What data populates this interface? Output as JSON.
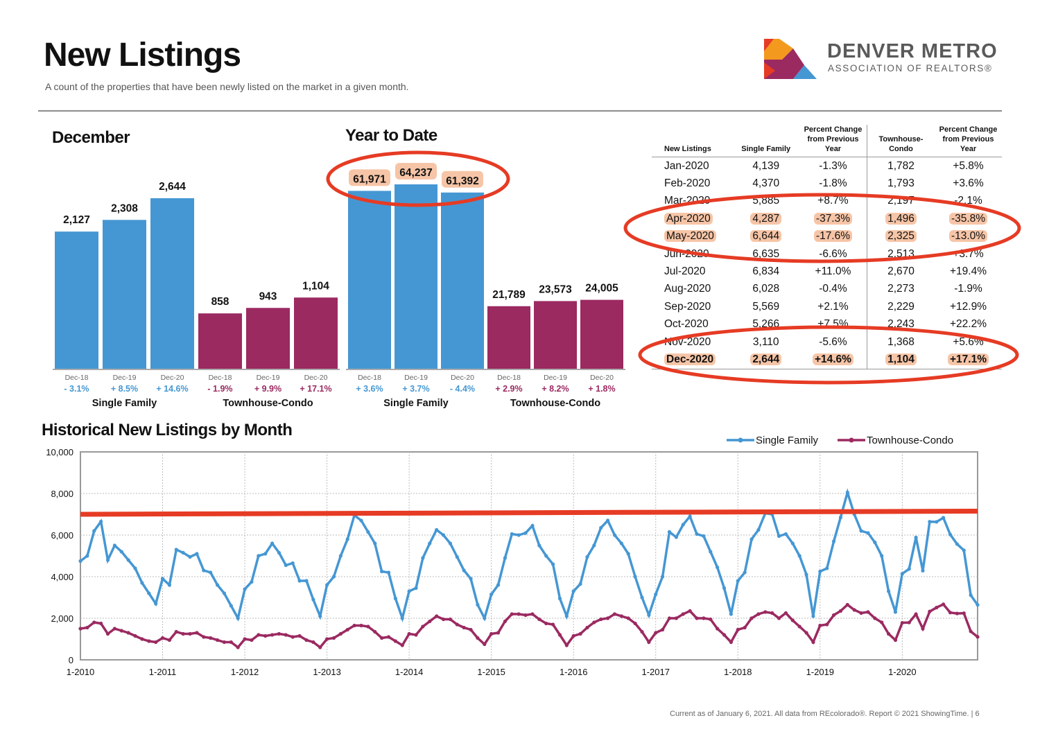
{
  "header": {
    "title": "New Listings",
    "subtitle": "A count of the properties that have been newly listed on the market in a given month.",
    "brand_line1": "DENVER METRO",
    "brand_line2": "ASSOCIATION OF REALTORS®"
  },
  "colors": {
    "single_family": "#4597d3",
    "townhouse": "#9b2a61",
    "highlight": "#f6c5a7",
    "annotation": "#e63b24"
  },
  "chart_data": [
    {
      "type": "bar",
      "title": "December",
      "groups": [
        {
          "name": "Single Family",
          "bars": [
            {
              "label": "Dec-18",
              "value": 2127,
              "value_label": "2,127",
              "change": "- 3.1%"
            },
            {
              "label": "Dec-19",
              "value": 2308,
              "value_label": "2,308",
              "change": "+ 8.5%"
            },
            {
              "label": "Dec-20",
              "value": 2644,
              "value_label": "2,644",
              "change": "+ 14.6%"
            }
          ]
        },
        {
          "name": "Townhouse-Condo",
          "bars": [
            {
              "label": "Dec-18",
              "value": 858,
              "value_label": "858",
              "change": "- 1.9%"
            },
            {
              "label": "Dec-19",
              "value": 943,
              "value_label": "943",
              "change": "+ 9.9%"
            },
            {
              "label": "Dec-20",
              "value": 1104,
              "value_label": "1,104",
              "change": "+ 17.1%"
            }
          ]
        }
      ]
    },
    {
      "type": "bar",
      "title": "Year to Date",
      "groups": [
        {
          "name": "Single Family",
          "bars": [
            {
              "label": "Dec-18",
              "value": 61971,
              "value_label": "61,971",
              "change": "+ 3.6%"
            },
            {
              "label": "Dec-19",
              "value": 64237,
              "value_label": "64,237",
              "change": "+ 3.7%"
            },
            {
              "label": "Dec-20",
              "value": 61392,
              "value_label": "61,392",
              "change": "- 4.4%"
            }
          ]
        },
        {
          "name": "Townhouse-Condo",
          "bars": [
            {
              "label": "Dec-18",
              "value": 21789,
              "value_label": "21,789",
              "change": "+ 2.9%"
            },
            {
              "label": "Dec-19",
              "value": 23573,
              "value_label": "23,573",
              "change": "+ 8.2%"
            },
            {
              "label": "Dec-20",
              "value": 24005,
              "value_label": "24,005",
              "change": "+ 1.8%"
            }
          ]
        }
      ]
    },
    {
      "type": "table",
      "columns": [
        "New Listings",
        "Single Family",
        "Percent Change from Previous Year",
        "Townhouse- Condo",
        "Percent Change from Previous Year"
      ],
      "rows": [
        [
          "Jan-2020",
          "4,139",
          "-1.3%",
          "1,782",
          "+5.8%"
        ],
        [
          "Feb-2020",
          "4,370",
          "-1.8%",
          "1,793",
          "+3.6%"
        ],
        [
          "Mar-2020",
          "5,885",
          "+8.7%",
          "2,197",
          "-2.1%"
        ],
        [
          "Apr-2020",
          "4,287",
          "-37.3%",
          "1,496",
          "-35.8%"
        ],
        [
          "May-2020",
          "6,644",
          "-17.6%",
          "2,325",
          "-13.0%"
        ],
        [
          "Jun-2020",
          "6,635",
          "-6.6%",
          "2,513",
          "+3.7%"
        ],
        [
          "Jul-2020",
          "6,834",
          "+11.0%",
          "2,670",
          "+19.4%"
        ],
        [
          "Aug-2020",
          "6,028",
          "-0.4%",
          "2,273",
          "-1.9%"
        ],
        [
          "Sep-2020",
          "5,569",
          "+2.1%",
          "2,229",
          "+12.9%"
        ],
        [
          "Oct-2020",
          "5,266",
          "+7.5%",
          "2,243",
          "+22.2%"
        ],
        [
          "Nov-2020",
          "3,110",
          "-5.6%",
          "1,368",
          "+5.6%"
        ],
        [
          "Dec-2020",
          "2,644",
          "+14.6%",
          "1,104",
          "+17.1%"
        ]
      ],
      "highlighted_rows": [
        "Apr-2020",
        "May-2020",
        "Dec-2020"
      ]
    },
    {
      "type": "line",
      "title": "Historical New Listings by Month",
      "x_start": "1-2010",
      "x_ticks": [
        "1-2010",
        "1-2011",
        "1-2012",
        "1-2013",
        "1-2014",
        "1-2015",
        "1-2016",
        "1-2017",
        "1-2018",
        "1-2019",
        "1-2020"
      ],
      "ylim": [
        0,
        10000
      ],
      "y_ticks": [
        "0",
        "2,000",
        "4,000",
        "6,000",
        "8,000",
        "10,000"
      ],
      "legend": "top-right",
      "grid": true,
      "reference_line": {
        "from": 7000,
        "to": 7150
      },
      "series": [
        {
          "name": "Single Family",
          "values": [
            4750,
            5000,
            6200,
            6650,
            4800,
            5500,
            5200,
            4800,
            4400,
            3700,
            3200,
            2700,
            3900,
            3600,
            5300,
            5150,
            4950,
            5100,
            4300,
            4200,
            3600,
            3200,
            2600,
            2000,
            3400,
            3750,
            5000,
            5100,
            5600,
            5150,
            4550,
            4650,
            3800,
            3800,
            2900,
            2100,
            3600,
            4000,
            5000,
            5800,
            6950,
            6700,
            6150,
            5600,
            4250,
            4200,
            2950,
            2000,
            3300,
            3450,
            4900,
            5600,
            6250,
            6000,
            5600,
            4950,
            4300,
            3900,
            2650,
            2000,
            3150,
            3600,
            4900,
            6050,
            6000,
            6100,
            6450,
            5500,
            5000,
            4600,
            2950,
            2100,
            3300,
            3650,
            4950,
            5500,
            6350,
            6700,
            6000,
            5600,
            5100,
            4000,
            3000,
            2150,
            3150,
            4000,
            6150,
            5900,
            6500,
            6900,
            6050,
            5950,
            5200,
            4450,
            3450,
            2200,
            3800,
            4200,
            5800,
            6250,
            7050,
            7000,
            5950,
            6050,
            5600,
            5000,
            4100,
            2100,
            4250,
            4400,
            5700,
            6850,
            8050,
            7000,
            6200,
            6100,
            5650,
            5000,
            3300,
            2300,
            4139,
            4370,
            5885,
            4287,
            6644,
            6635,
            6834,
            6028,
            5569,
            5266,
            3110,
            2644
          ]
        },
        {
          "name": "Townhouse-Condo",
          "values": [
            1500,
            1550,
            1800,
            1750,
            1250,
            1500,
            1400,
            1300,
            1150,
            1000,
            900,
            850,
            1050,
            950,
            1350,
            1250,
            1250,
            1300,
            1100,
            1050,
            950,
            850,
            850,
            600,
            1000,
            950,
            1200,
            1150,
            1200,
            1250,
            1200,
            1100,
            1150,
            950,
            850,
            600,
            1000,
            1050,
            1250,
            1450,
            1650,
            1650,
            1600,
            1350,
            1050,
            1100,
            900,
            700,
            1250,
            1200,
            1600,
            1850,
            2100,
            1950,
            1950,
            1700,
            1550,
            1450,
            1050,
            750,
            1250,
            1300,
            1850,
            2200,
            2200,
            2150,
            2200,
            1950,
            1750,
            1700,
            1200,
            700,
            1150,
            1250,
            1550,
            1800,
            1950,
            2000,
            2200,
            2100,
            2000,
            1750,
            1350,
            850,
            1300,
            1450,
            2000,
            2000,
            2200,
            2350,
            2000,
            2000,
            1950,
            1500,
            1200,
            850,
            1450,
            1550,
            2000,
            2200,
            2300,
            2250,
            2000,
            2250,
            1900,
            1600,
            1300,
            850,
            1650,
            1700,
            2150,
            2350,
            2650,
            2400,
            2250,
            2300,
            2000,
            1800,
            1250,
            950,
            1782,
            1793,
            2197,
            1496,
            2325,
            2513,
            2670,
            2273,
            2229,
            2243,
            1368,
            1104
          ]
        }
      ]
    }
  ],
  "footer": "Current as of January 6, 2021. All data from REcolorado®. Report © 2021 ShowingTime. | 6"
}
